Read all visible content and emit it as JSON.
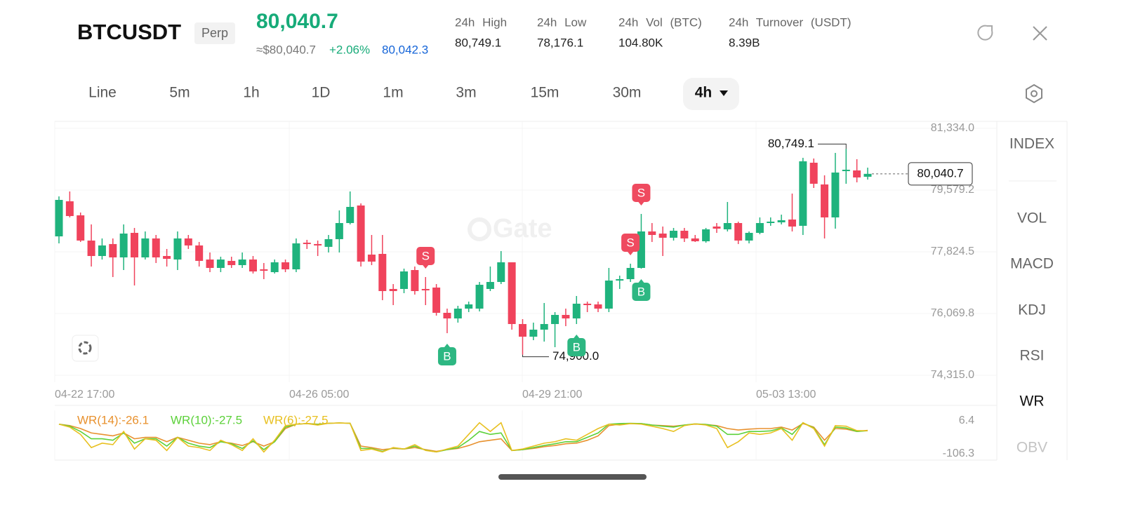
{
  "header": {
    "symbol": "BTCUSDT",
    "contract": "Perp",
    "price": "80,040.7",
    "fiat_price": "≈$80,040.7",
    "change": "+2.06%",
    "mark_price": "80,042.3",
    "stats": [
      {
        "label": "24h High",
        "value": "80,749.1"
      },
      {
        "label": "24h Low",
        "value": "78,176.1"
      },
      {
        "label": "24h Vol (BTC)",
        "value": "104.80K"
      },
      {
        "label": "24h Turnover (USDT)",
        "value": "8.39B"
      }
    ]
  },
  "timeframes": [
    {
      "label": "Line"
    },
    {
      "label": "5m"
    },
    {
      "label": "1h"
    },
    {
      "label": "1D"
    },
    {
      "label": "1m"
    },
    {
      "label": "3m"
    },
    {
      "label": "15m"
    },
    {
      "label": "30m"
    },
    {
      "label": "4h",
      "active": true
    }
  ],
  "indicators": [
    {
      "label": "INDEX"
    },
    {
      "label": "VOL"
    },
    {
      "label": "MACD"
    },
    {
      "label": "KDJ"
    },
    {
      "label": "RSI"
    },
    {
      "label": "WR",
      "active": true
    },
    {
      "label": "OBV"
    }
  ],
  "watermark": "Gate",
  "chart_data": [
    {
      "type": "candlestick",
      "up_color": "#1fb37d",
      "down_color": "#f0435c",
      "x_labels": [
        "04-22 17:00",
        "04-26 05:00",
        "04-29 21:00",
        "05-03 13:00"
      ],
      "ylim": [
        74315,
        81334
      ],
      "yticks": [
        {
          "value": 81334,
          "label": "81,334.0"
        },
        {
          "value": 79579.2,
          "label": "79,579.2"
        },
        {
          "value": 77824.5,
          "label": "77,824.5"
        },
        {
          "value": 76069.8,
          "label": "76,069.8"
        },
        {
          "value": 74315,
          "label": "74,315.0"
        }
      ],
      "open": [
        78263,
        79260,
        78861,
        78144,
        77705,
        78045,
        77665,
        78363,
        77665,
        78204,
        77705,
        77605,
        78204,
        78005,
        77605,
        77366,
        77566,
        77446,
        77605,
        77326,
        77246,
        77526,
        77326,
        78084,
        78045,
        77965,
        78184,
        78642,
        79141,
        77745,
        77765,
        76768,
        76768,
        77306,
        76768,
        76808,
        76090,
        75930,
        76209,
        76209,
        76768,
        76967,
        77526,
        75771,
        75411,
        75611,
        75771,
        76030,
        75930,
        76349,
        76329,
        76209,
        77007,
        77047,
        77366,
        78403,
        78343,
        78224,
        78423,
        78204,
        78124,
        78543,
        78463,
        78642,
        78144,
        78363,
        78642,
        78662,
        78742,
        78563,
        80357,
        79739,
        78802,
        80118,
        80138,
        79958
      ],
      "high": [
        79400,
        79540,
        78941,
        78603,
        78204,
        78204,
        78603,
        78503,
        78403,
        78303,
        77905,
        78403,
        78303,
        78104,
        77805,
        77685,
        77685,
        77805,
        77705,
        77506,
        77605,
        77605,
        78204,
        78164,
        78144,
        78303,
        79001,
        79540,
        79201,
        78303,
        78303,
        76907,
        77346,
        77406,
        77107,
        76907,
        76209,
        76289,
        76409,
        76967,
        77406,
        77845,
        77526,
        75910,
        75811,
        76369,
        76110,
        76209,
        76568,
        76409,
        76409,
        77366,
        77147,
        77486,
        78901,
        78642,
        78543,
        78503,
        78503,
        78303,
        78503,
        78642,
        79241,
        78682,
        78403,
        78802,
        78802,
        78881,
        79480,
        80496,
        80477,
        79998,
        80636,
        80749.1,
        80457,
        80217
      ],
      "low": [
        78064,
        78802,
        78104,
        77406,
        77605,
        77107,
        77306,
        76867,
        77605,
        77506,
        77406,
        77306,
        77905,
        77406,
        77246,
        77246,
        77366,
        77366,
        77207,
        77047,
        77207,
        77246,
        77246,
        77905,
        77705,
        77805,
        77805,
        78603,
        77406,
        77446,
        76449,
        76309,
        76648,
        76608,
        76309,
        76010,
        75511,
        75811,
        76110,
        76130,
        76708,
        76907,
        75611,
        74900,
        75312,
        75272,
        75113,
        75711,
        75771,
        76110,
        76110,
        76110,
        76768,
        76967,
        77346,
        78104,
        77705,
        78144,
        78104,
        78104,
        78084,
        78363,
        78403,
        78045,
        78064,
        78323,
        78563,
        78603,
        78403,
        78303,
        79639,
        78203,
        78483,
        79759,
        79799,
        79878
      ],
      "close": [
        79300,
        78841,
        78144,
        77705,
        78005,
        77665,
        78343,
        77665,
        78204,
        77665,
        77625,
        78204,
        78005,
        77566,
        77366,
        77605,
        77446,
        77605,
        77266,
        77286,
        77526,
        77326,
        78064,
        78045,
        78005,
        78184,
        78642,
        79101,
        77546,
        77546,
        76708,
        76708,
        77266,
        76708,
        76728,
        76090,
        75930,
        76209,
        76329,
        76887,
        76967,
        77526,
        75771,
        75411,
        75611,
        75771,
        76030,
        75930,
        76349,
        76309,
        76209,
        77007,
        77047,
        77366,
        78403,
        78303,
        78224,
        78423,
        78204,
        78124,
        78463,
        78483,
        78642,
        78144,
        78363,
        78642,
        78682,
        78722,
        78543,
        80397,
        79759,
        78802,
        80078,
        80158,
        79938,
        80040.7
      ],
      "high_label": {
        "value": 80749.1,
        "label": "80,749.1",
        "index": 73
      },
      "low_label": {
        "value": 74900,
        "label": "74,900.0",
        "index": 43
      },
      "last_price": {
        "value": 80040.7,
        "label": "80,040.7"
      },
      "signals": [
        {
          "label": "S",
          "index": 34
        },
        {
          "label": "B",
          "index": 36
        },
        {
          "label": "B",
          "index": 48
        },
        {
          "label": "S",
          "index": 53
        },
        {
          "label": "S",
          "index": 54
        },
        {
          "label": "B",
          "index": 54
        }
      ]
    },
    {
      "type": "line",
      "ylim": [
        -106.3,
        6.4
      ],
      "yticks": [
        6.4,
        -106.3
      ],
      "series": [
        {
          "name": "WR(14):-26.1",
          "color": "#e8912e",
          "values": [
            -5,
            -10,
            -20,
            -35,
            -40,
            -45,
            -35,
            -55,
            -50,
            -50,
            -65,
            -50,
            -60,
            -70,
            -75,
            -65,
            -70,
            -78,
            -65,
            -80,
            -65,
            -20,
            -5,
            -3,
            -5,
            -2,
            -1,
            -2,
            -80,
            -85,
            -92,
            -88,
            -90,
            -85,
            -92,
            -98,
            -92,
            -88,
            -78,
            -65,
            -60,
            -55,
            -95,
            -92,
            -88,
            -82,
            -78,
            -72,
            -70,
            -60,
            -45,
            -10,
            -5,
            -3,
            -3,
            -8,
            -10,
            -12,
            -8,
            -5,
            -6,
            -10,
            -20,
            -25,
            -22,
            -20,
            -20,
            -15,
            -25,
            -3,
            -15,
            -60,
            -20,
            -22,
            -30,
            -26.1
          ]
        },
        {
          "name": "WR(10):-27.5",
          "color": "#5cd13a",
          "values": [
            -5,
            -12,
            -30,
            -55,
            -55,
            -60,
            -35,
            -70,
            -55,
            -55,
            -80,
            -50,
            -70,
            -80,
            -85,
            -65,
            -72,
            -88,
            -62,
            -92,
            -65,
            -15,
            -5,
            -3,
            -6,
            -2,
            -1,
            -2,
            -88,
            -88,
            -98,
            -86,
            -90,
            -80,
            -94,
            -100,
            -92,
            -85,
            -60,
            -30,
            -40,
            -35,
            -95,
            -92,
            -85,
            -78,
            -72,
            -65,
            -65,
            -50,
            -35,
            -5,
            -3,
            -2,
            -3,
            -8,
            -12,
            -15,
            -8,
            -4,
            -6,
            -12,
            -40,
            -40,
            -30,
            -30,
            -28,
            -18,
            -40,
            0,
            -18,
            -75,
            -15,
            -18,
            -30,
            -27.5
          ]
        },
        {
          "name": "WR(6):-27.5",
          "color": "#e8c020",
          "values": [
            -5,
            -15,
            -40,
            -85,
            -70,
            -75,
            -30,
            -90,
            -55,
            -60,
            -95,
            -50,
            -80,
            -85,
            -95,
            -60,
            -75,
            -95,
            -55,
            -100,
            -60,
            -10,
            -5,
            -3,
            -8,
            -2,
            -1,
            -2,
            -95,
            -90,
            -100,
            -85,
            -90,
            -75,
            -95,
            -100,
            -90,
            -80,
            -40,
            0,
            -30,
            0,
            -95,
            -90,
            -80,
            -70,
            -65,
            -55,
            -60,
            -40,
            -20,
            -5,
            -8,
            -3,
            -5,
            -12,
            -20,
            -30,
            -10,
            -4,
            -8,
            -20,
            -85,
            -65,
            -35,
            -40,
            -35,
            -20,
            -60,
            0,
            -20,
            -80,
            -10,
            -12,
            -27,
            -27.5
          ]
        }
      ]
    }
  ]
}
